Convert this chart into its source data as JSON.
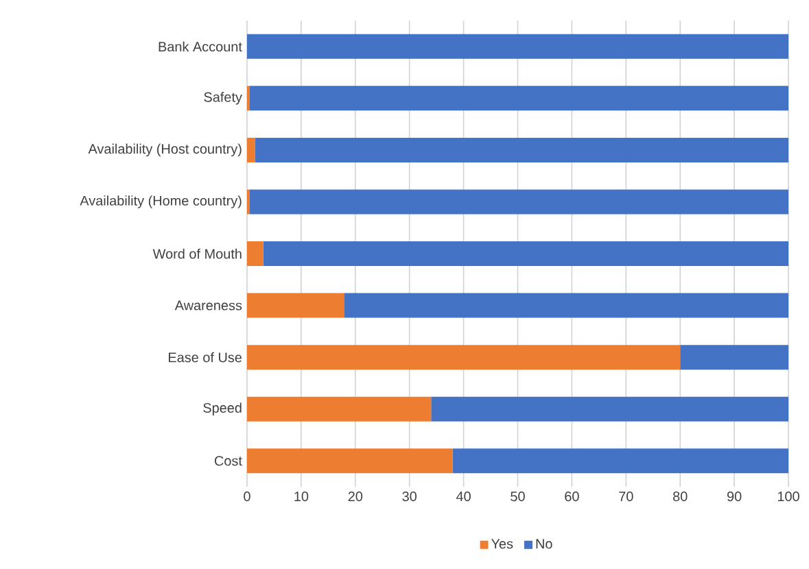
{
  "chart_data": {
    "type": "bar",
    "orientation": "horizontal",
    "stacked": true,
    "categories": [
      "Bank Account",
      "Safety",
      "Availability (Host country)",
      "Availability (Home country)",
      "Word of Mouth",
      "Awareness",
      "Ease of Use",
      "Speed",
      "Cost"
    ],
    "series": [
      {
        "name": "Yes",
        "color": "#ed7d31",
        "values": [
          0,
          0.5,
          1.5,
          0.5,
          3,
          18,
          80,
          34,
          38
        ]
      },
      {
        "name": "No",
        "color": "#4472c4",
        "values": [
          100,
          99.5,
          98.5,
          99.5,
          97,
          82,
          20,
          66,
          62
        ]
      }
    ],
    "xlim": [
      0,
      100
    ],
    "xticks": [
      0,
      10,
      20,
      30,
      40,
      50,
      60,
      70,
      80,
      90,
      100
    ],
    "grid": "x",
    "legend": "bottom"
  }
}
